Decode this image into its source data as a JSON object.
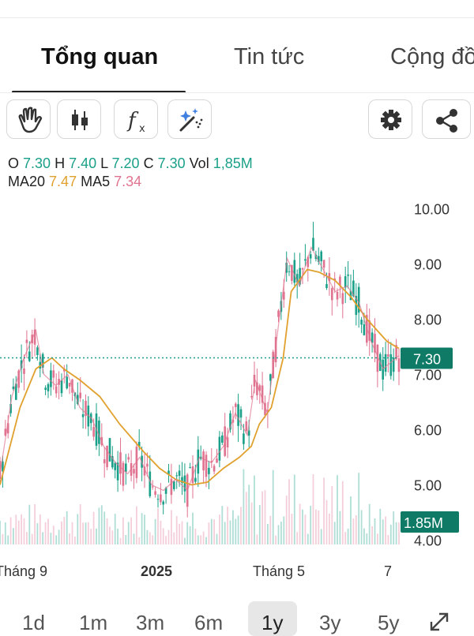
{
  "tabs": [
    {
      "label": "Tổng quan",
      "active": true
    },
    {
      "label": "Tin tức",
      "active": false
    },
    {
      "label": "Cộng đồ",
      "active": false
    }
  ],
  "toolbar": {
    "left_tools": [
      "hand-icon",
      "candlestick-icon",
      "function-icon",
      "magic-draw-icon"
    ],
    "right_tools": [
      "gear-icon",
      "share-icon"
    ],
    "function_glyph": "f",
    "function_sub": "x"
  },
  "ohlc": {
    "o_label": "O",
    "o": "7.30",
    "h_label": "H",
    "h": "7.40",
    "l_label": "L",
    "l": "7.20",
    "c_label": "C",
    "c": "7.30",
    "vol_label": "Vol",
    "vol": "1,85M",
    "ma20_label": "MA20",
    "ma20": "7.47",
    "ma5_label": "MA5",
    "ma5": "7.34"
  },
  "chart_data": {
    "type": "line",
    "y_ticks": [
      "10.00",
      "9.00",
      "8.00",
      "7.00",
      "6.00",
      "5.00",
      "4.00"
    ],
    "ylim": [
      3.85,
      10.35
    ],
    "x_ticks": [
      "Tháng 9",
      "2025",
      "Tháng 5",
      "7"
    ],
    "current_price_label": "7.30",
    "current_price": 7.3,
    "current_volume_label": "1.85M",
    "colors": {
      "up": "#1aa089",
      "down": "#e0738f",
      "ma20": "#e0a12e",
      "ma5": "#e0738f"
    },
    "series": [
      {
        "name": "MA20",
        "x": [
          0,
          5,
          9,
          13,
          16,
          20,
          25,
          30,
          36,
          40,
          44,
          48,
          52,
          56,
          60,
          63,
          65,
          68,
          71,
          73,
          77,
          80,
          84,
          88,
          92,
          97,
          100
        ],
        "y": [
          5.0,
          6.4,
          7.1,
          7.3,
          7.1,
          6.9,
          6.6,
          6.1,
          5.6,
          5.3,
          5.1,
          5.0,
          5.05,
          5.3,
          5.5,
          5.7,
          6.1,
          6.4,
          7.3,
          8.5,
          8.9,
          8.85,
          8.7,
          8.4,
          8.0,
          7.6,
          7.47
        ]
      },
      {
        "name": "MA5",
        "x": [
          0,
          3,
          6,
          9,
          11,
          14,
          17,
          20,
          23,
          26,
          29,
          32,
          35,
          38,
          41,
          44,
          47,
          50,
          53,
          56,
          59,
          62,
          64,
          67,
          70,
          72,
          75,
          78,
          81,
          84,
          87,
          90,
          93,
          96,
          100
        ],
        "y": [
          5.2,
          6.6,
          7.3,
          7.8,
          7.0,
          6.8,
          7.0,
          6.4,
          6.2,
          5.7,
          5.4,
          5.2,
          5.5,
          5.0,
          4.9,
          5.1,
          4.9,
          5.5,
          5.4,
          5.7,
          6.3,
          5.9,
          6.9,
          6.3,
          8.0,
          9.1,
          8.6,
          9.3,
          8.9,
          8.5,
          8.6,
          8.3,
          7.6,
          7.1,
          7.34
        ]
      }
    ]
  },
  "timeframes": [
    {
      "label": "1d",
      "active": false
    },
    {
      "label": "1m",
      "active": false
    },
    {
      "label": "3m",
      "active": false
    },
    {
      "label": "6m",
      "active": false
    },
    {
      "label": "1y",
      "active": true
    },
    {
      "label": "3y",
      "active": false
    },
    {
      "label": "5y",
      "active": false
    }
  ]
}
